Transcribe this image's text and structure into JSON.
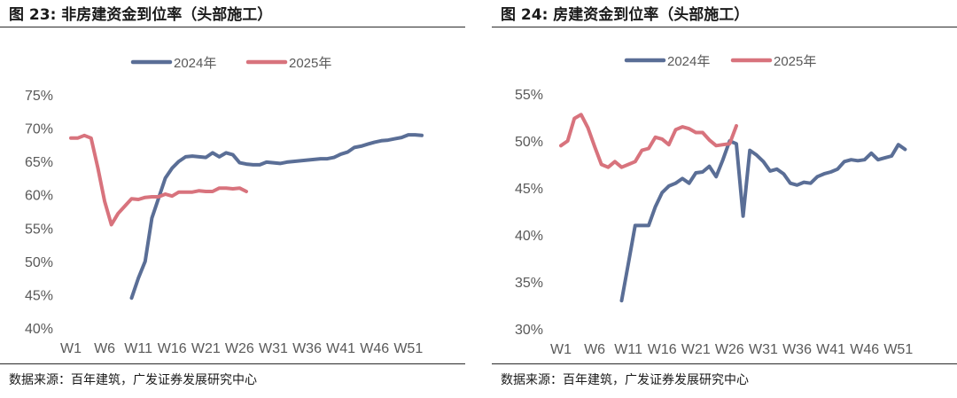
{
  "figures": [
    {
      "id": "left",
      "title": "图 23:  非房建资金到位率（头部施工）",
      "source": "数据来源：百年建筑，广发证券发展研究中心"
    },
    {
      "id": "right",
      "title": "图 24:  房建资金到位率（头部施工）",
      "source": "数据来源：百年建筑，广发证券发展研究中心"
    }
  ],
  "chart_data": [
    {
      "type": "line",
      "title": "非房建资金到位率（头部施工）",
      "xlabel": "",
      "ylabel": "",
      "xlim": [
        1,
        53
      ],
      "ylim": [
        0.4,
        0.75
      ],
      "yticks": [
        0.4,
        0.45,
        0.5,
        0.55,
        0.6,
        0.65,
        0.7,
        0.75
      ],
      "ytick_labels": [
        "40%",
        "45%",
        "50%",
        "55%",
        "60%",
        "65%",
        "70%",
        "75%"
      ],
      "xticks": [
        1,
        6,
        11,
        16,
        21,
        26,
        31,
        36,
        41,
        46,
        51
      ],
      "xtick_labels": [
        "W1",
        "W6",
        "W11",
        "W16",
        "W21",
        "W26",
        "W31",
        "W36",
        "W41",
        "W46",
        "W51"
      ],
      "legend_position": "top-center",
      "grid": false,
      "series": [
        {
          "name": "2024年",
          "color": "#5a6e96",
          "x": [
            10,
            11,
            12,
            13,
            14,
            15,
            16,
            17,
            18,
            19,
            20,
            21,
            22,
            23,
            24,
            25,
            26,
            27,
            28,
            29,
            30,
            31,
            32,
            33,
            34,
            35,
            36,
            37,
            38,
            39,
            40,
            41,
            42,
            43,
            44,
            45,
            46,
            47,
            48,
            49,
            50,
            51,
            52,
            53
          ],
          "values": [
            0.445,
            0.475,
            0.5,
            0.565,
            0.595,
            0.625,
            0.64,
            0.65,
            0.657,
            0.658,
            0.657,
            0.656,
            0.663,
            0.657,
            0.663,
            0.66,
            0.648,
            0.646,
            0.645,
            0.645,
            0.649,
            0.648,
            0.647,
            0.649,
            0.65,
            0.651,
            0.652,
            0.653,
            0.654,
            0.654,
            0.656,
            0.661,
            0.664,
            0.671,
            0.673,
            0.676,
            0.679,
            0.681,
            0.682,
            0.684,
            0.686,
            0.69,
            0.69,
            0.689
          ]
        },
        {
          "name": "2025年",
          "color": "#d8737d",
          "x": [
            1,
            2,
            3,
            4,
            5,
            6,
            7,
            8,
            9,
            10,
            11,
            12,
            13,
            14,
            15,
            16,
            17,
            18,
            19,
            20,
            21,
            22,
            23,
            24,
            25,
            26,
            27
          ],
          "values": [
            0.685,
            0.685,
            0.689,
            0.685,
            0.64,
            0.59,
            0.555,
            0.572,
            0.583,
            0.594,
            0.593,
            0.596,
            0.597,
            0.597,
            0.601,
            0.598,
            0.604,
            0.604,
            0.604,
            0.606,
            0.605,
            0.605,
            0.61,
            0.61,
            0.609,
            0.61,
            0.605
          ]
        }
      ]
    },
    {
      "type": "line",
      "title": "房建资金到位率（头部施工）",
      "xlabel": "",
      "ylabel": "",
      "xlim": [
        1,
        53
      ],
      "ylim": [
        0.3,
        0.55
      ],
      "yticks": [
        0.3,
        0.35,
        0.4,
        0.45,
        0.5,
        0.55
      ],
      "ytick_labels": [
        "30%",
        "35%",
        "40%",
        "45%",
        "50%",
        "55%"
      ],
      "xticks": [
        1,
        6,
        11,
        16,
        21,
        26,
        31,
        36,
        41,
        46,
        51
      ],
      "xtick_labels": [
        "W1",
        "W6",
        "W11",
        "W16",
        "W21",
        "W26",
        "W31",
        "W36",
        "W41",
        "W46",
        "W51"
      ],
      "legend_position": "top-center",
      "grid": false,
      "series": [
        {
          "name": "2024年",
          "color": "#5a6e96",
          "x": [
            10,
            11,
            12,
            13,
            14,
            15,
            16,
            17,
            18,
            19,
            20,
            21,
            22,
            23,
            24,
            25,
            26,
            27,
            28,
            29,
            30,
            31,
            32,
            33,
            34,
            35,
            36,
            37,
            38,
            39,
            40,
            41,
            42,
            43,
            44,
            45,
            46,
            47,
            48,
            49,
            50,
            51,
            52
          ],
          "values": [
            0.33,
            0.37,
            0.41,
            0.41,
            0.41,
            0.43,
            0.445,
            0.452,
            0.455,
            0.46,
            0.455,
            0.466,
            0.467,
            0.473,
            0.462,
            0.48,
            0.5,
            0.497,
            0.42,
            0.49,
            0.485,
            0.478,
            0.468,
            0.47,
            0.465,
            0.455,
            0.453,
            0.456,
            0.455,
            0.462,
            0.465,
            0.467,
            0.47,
            0.478,
            0.48,
            0.479,
            0.48,
            0.487,
            0.48,
            0.482,
            0.484,
            0.496,
            0.491
          ]
        },
        {
          "name": "2025年",
          "color": "#d8737d",
          "x": [
            1,
            2,
            3,
            4,
            5,
            6,
            7,
            8,
            9,
            10,
            11,
            12,
            13,
            14,
            15,
            16,
            17,
            18,
            19,
            20,
            21,
            22,
            23,
            24,
            25,
            26,
            27
          ],
          "values": [
            0.495,
            0.5,
            0.524,
            0.528,
            0.514,
            0.494,
            0.475,
            0.472,
            0.478,
            0.472,
            0.475,
            0.478,
            0.49,
            0.492,
            0.504,
            0.502,
            0.496,
            0.512,
            0.515,
            0.513,
            0.509,
            0.509,
            0.501,
            0.495,
            0.496,
            0.497,
            0.516
          ]
        }
      ]
    }
  ]
}
